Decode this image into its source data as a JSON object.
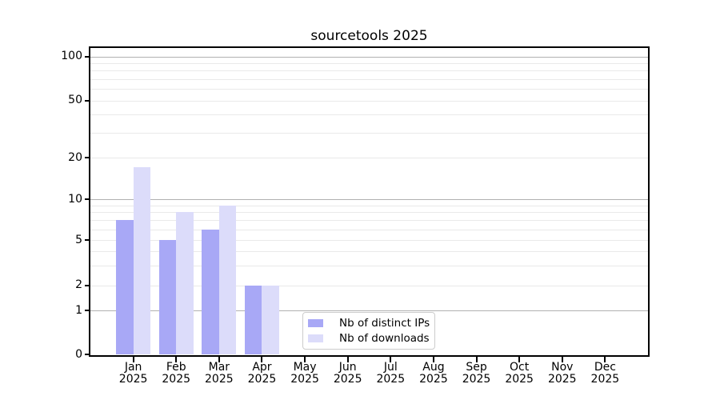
{
  "chart_data": {
    "type": "bar",
    "title": "sourcetools 2025",
    "categories": [
      "Jan",
      "Feb",
      "Mar",
      "Apr",
      "May",
      "Jun",
      "Jul",
      "Aug",
      "Sep",
      "Oct",
      "Nov",
      "Dec"
    ],
    "year_label": "2025",
    "series": [
      {
        "name": "Nb of distinct IPs",
        "color": "#a8a8f6",
        "values": [
          7,
          5,
          6,
          2,
          0,
          0,
          0,
          0,
          0,
          0,
          0,
          0
        ]
      },
      {
        "name": "Nb of downloads",
        "color": "#dcdcfa",
        "values": [
          17,
          8,
          9,
          2,
          0,
          0,
          0,
          0,
          0,
          0,
          0,
          0
        ]
      }
    ],
    "xlabel": "",
    "ylabel": "",
    "yscale": "symlog",
    "y_ticks": [
      0,
      1,
      2,
      5,
      10,
      20,
      50,
      100
    ],
    "y_grid_major": [
      1,
      10,
      100
    ],
    "y_grid_minor": [
      2,
      3,
      4,
      5,
      6,
      7,
      8,
      9,
      20,
      30,
      40,
      50,
      60,
      70,
      80,
      90
    ],
    "ylim": [
      0,
      115
    ],
    "grid": "on",
    "legend_position": "lower center",
    "colors": {
      "grid_major": "#b0b0b0",
      "grid_minor": "#e9e9e9",
      "axis": "#000000",
      "legend_border": "#cccccc"
    }
  }
}
